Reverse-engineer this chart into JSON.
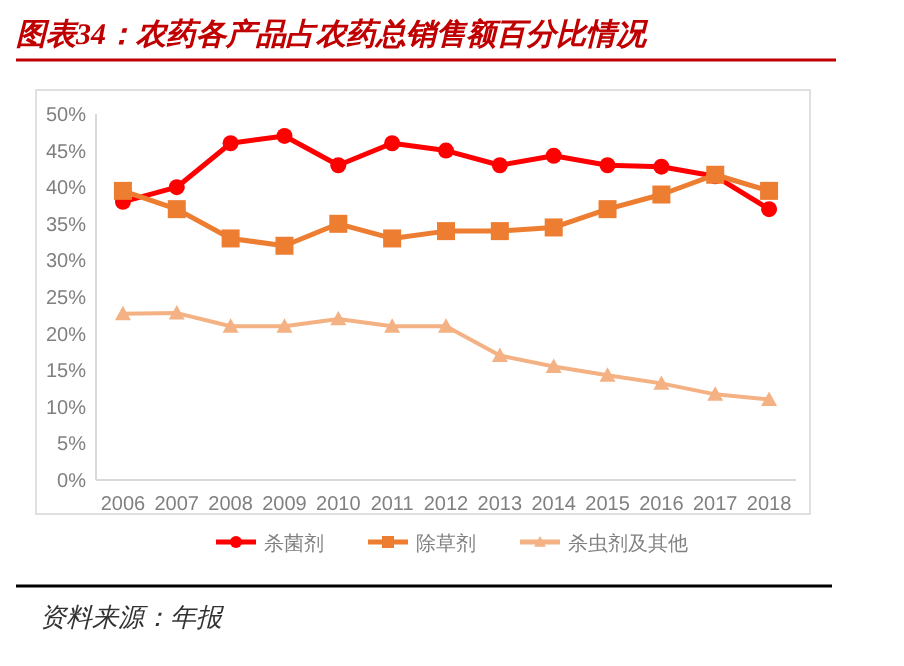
{
  "chart_data": {
    "type": "line",
    "title": "图表34：农药各产品占农药总销售额百分比情况",
    "categories": [
      "2006",
      "2007",
      "2008",
      "2009",
      "2010",
      "2011",
      "2012",
      "2013",
      "2014",
      "2015",
      "2016",
      "2017",
      "2018"
    ],
    "series": [
      {
        "name": "杀菌剂",
        "color": "#ff0000",
        "marker": "circle",
        "values": [
          38,
          40,
          46,
          47,
          43,
          46,
          45,
          43,
          44.3,
          43,
          42.8,
          41.5,
          37
        ]
      },
      {
        "name": "除草剂",
        "color": "#ed7d31",
        "marker": "square",
        "values": [
          39.5,
          37,
          33,
          32,
          35,
          33,
          34,
          34,
          34.5,
          37,
          39,
          41.7,
          39.5
        ]
      },
      {
        "name": "杀虫剂及其他",
        "color": "#f4b183",
        "marker": "triangle",
        "values": [
          22.7,
          22.8,
          21,
          21,
          22,
          21,
          21,
          17,
          15.5,
          14.3,
          13.2,
          11.7,
          11
        ]
      }
    ],
    "ylim": [
      0,
      50
    ],
    "yticks": [
      {
        "value": 0,
        "label": "0%"
      },
      {
        "value": 5,
        "label": "5%"
      },
      {
        "value": 10,
        "label": "10%"
      },
      {
        "value": 15,
        "label": "15%"
      },
      {
        "value": 20,
        "label": "20%"
      },
      {
        "value": 25,
        "label": "25%"
      },
      {
        "value": 30,
        "label": "30%"
      },
      {
        "value": 35,
        "label": "35%"
      },
      {
        "value": 40,
        "label": "40%"
      },
      {
        "value": 45,
        "label": "45%"
      },
      {
        "value": 50,
        "label": "50%"
      }
    ],
    "grid": false,
    "legend": "bottom",
    "line_style": "solid",
    "annotations": [
      "资料来源：年报"
    ]
  }
}
